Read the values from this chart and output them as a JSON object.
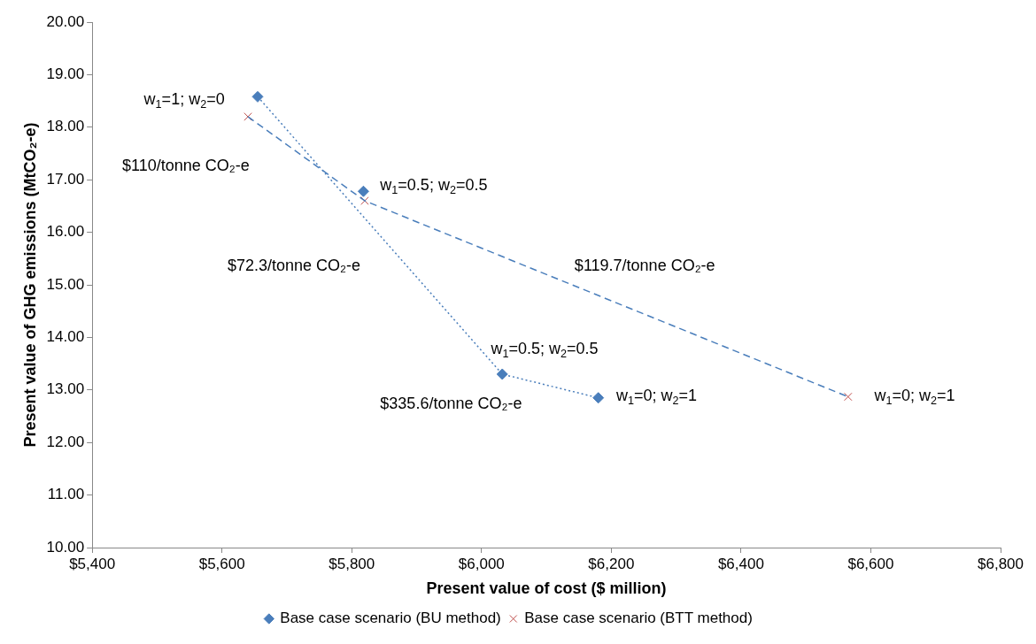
{
  "chart_data": {
    "type": "scatter",
    "xlabel": "Present value of cost ($ million)",
    "ylabel": "Present value of GHG emissions (MtCO₂-e)",
    "xlim": [
      5400,
      6800
    ],
    "xticks": [
      {
        "value": 5400,
        "label": "$5,400"
      },
      {
        "value": 5600,
        "label": "$5,600"
      },
      {
        "value": 5800,
        "label": "$5,800"
      },
      {
        "value": 6000,
        "label": "$6,000"
      },
      {
        "value": 6200,
        "label": "$6,200"
      },
      {
        "value": 6400,
        "label": "$6,400"
      },
      {
        "value": 6600,
        "label": "$6,600"
      },
      {
        "value": 6800,
        "label": "$6,800"
      }
    ],
    "ylim": [
      10,
      20
    ],
    "yticks": [
      {
        "value": 10,
        "label": "10.00"
      },
      {
        "value": 11,
        "label": "11.00"
      },
      {
        "value": 12,
        "label": "12.00"
      },
      {
        "value": 13,
        "label": "13.00"
      },
      {
        "value": 14,
        "label": "14.00"
      },
      {
        "value": 15,
        "label": "15.00"
      },
      {
        "value": 16,
        "label": "16.00"
      },
      {
        "value": 17,
        "label": "17.00"
      },
      {
        "value": 18,
        "label": "18.00"
      },
      {
        "value": 19,
        "label": "19.00"
      },
      {
        "value": 20,
        "label": "20.00"
      }
    ],
    "grid": false,
    "legend": "bottom",
    "series": [
      {
        "type": "line",
        "color": "#4a7ebb",
        "line_style": "dotted",
        "marker": "none",
        "x": [
          5655,
          6032,
          6180
        ],
        "values": [
          18.58,
          13.3,
          12.85
        ]
      },
      {
        "type": "line",
        "color": "#4a7ebb",
        "line_style": "dashed",
        "marker": "none",
        "x": [
          5640,
          5820,
          6565
        ],
        "values": [
          18.2,
          16.6,
          12.87
        ]
      },
      {
        "name": "Base case scenario (BU method)",
        "color": "#4a7ebb",
        "marker": "diamond",
        "x": [
          5655,
          5818,
          6032,
          6180
        ],
        "values": [
          18.58,
          16.78,
          13.3,
          12.85
        ]
      },
      {
        "name": "Base case scenario (BTT method)",
        "color": "#c0504d",
        "marker": "cross",
        "x": [
          5640,
          5820,
          6565
        ],
        "values": [
          18.2,
          16.6,
          12.87
        ]
      }
    ],
    "annotations": [
      "w$_{1}$=1; w$_{2}$=0",
      "$110/tonne CO₂-e",
      "w$_{1}$=0.5; w$_{2}$=0.5",
      "$72.3/tonne CO₂-e",
      "$119.7/tonne CO₂-e",
      "w$_{1}$=0.5; w$_{2}$=0.5",
      "$335.6/tonne CO₂-e",
      "w$_{1}$=0; w$_{2}$=1",
      "w$_{1}$=0; w$_{2}$=1"
    ]
  }
}
